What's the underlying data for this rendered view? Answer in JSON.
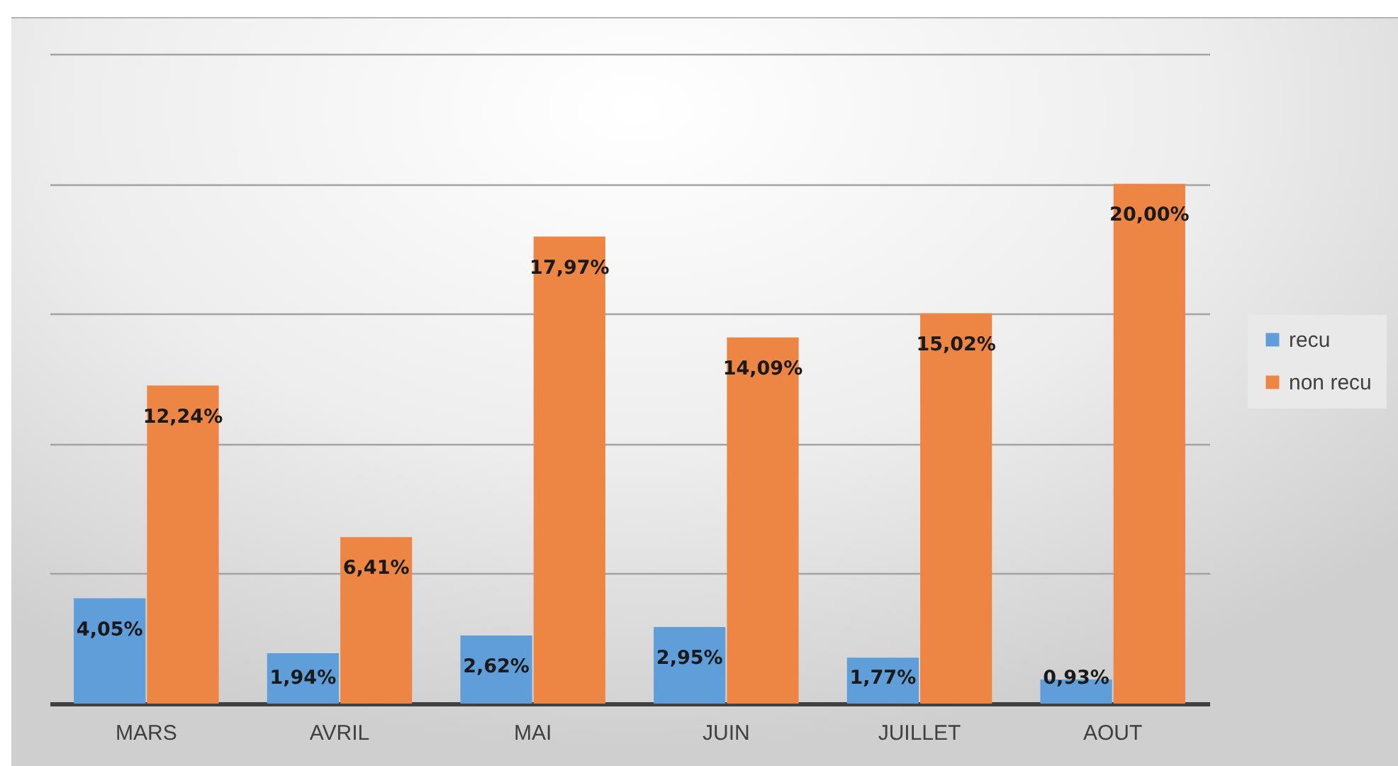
{
  "chart_data": {
    "type": "bar",
    "categories": [
      "MARS",
      "AVRIL",
      "MAI",
      "JUIN",
      "JUILLET",
      "AOUT"
    ],
    "series": [
      {
        "name": "recu",
        "color": "#5f9ed8",
        "values": [
          4.05,
          1.94,
          2.62,
          2.95,
          1.77,
          0.93
        ],
        "value_labels": [
          "4,05%",
          "1,94%",
          "2,62%",
          "2,95%",
          "1,77%",
          "0,93%"
        ]
      },
      {
        "name": "non recu",
        "color": "#ed8645",
        "values": [
          12.24,
          6.41,
          17.97,
          14.09,
          15.02,
          20.0
        ],
        "value_labels": [
          "12,24%",
          "6,41%",
          "17,97%",
          "14,09%",
          "15,02%",
          "20,00%"
        ]
      }
    ],
    "ylim": [
      0,
      25
    ],
    "yticks": [
      {
        "value": 0,
        "label": null
      },
      {
        "value": 5,
        "label": null
      },
      {
        "value": 10,
        "label": null
      },
      {
        "value": 15,
        "label": null
      },
      {
        "value": 20,
        "label": null
      },
      {
        "value": 25,
        "label": null
      }
    ],
    "grid": "y",
    "legend": "right",
    "tick_labels": "x"
  }
}
